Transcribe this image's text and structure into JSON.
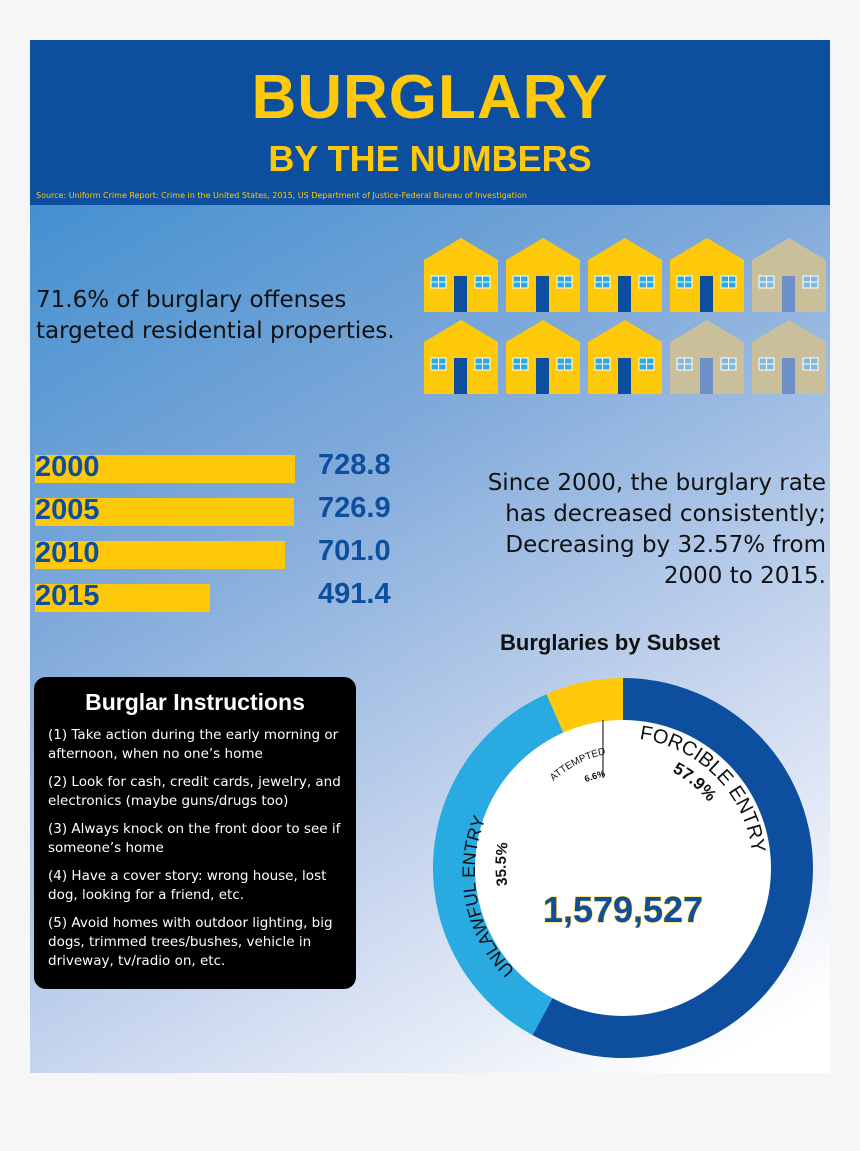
{
  "header": {
    "title": "BURGLARY",
    "subtitle": "BY THE NUMBERS",
    "source": "Source: Uniform Crime Report: Crime in the United States, 2015, US Department of Justice-Federal Bureau of Investigation"
  },
  "residential": {
    "text_line1": "71.6% of burglary offenses",
    "text_line2": "targeted residential properties.",
    "houses_total": 10,
    "houses_highlighted": 7,
    "highlight_color": "#fec80b",
    "dim_color": "#c9bf9a"
  },
  "rate_note": {
    "line1": "Since 2000, the burglary rate",
    "line2": "has decreased consistently;",
    "line3": "Decreasing by 32.57% from",
    "line4": "2000 to 2015."
  },
  "instructions": {
    "title": "Burglar Instructions",
    "items": [
      "(1) Take action during the early morning or afternoon, when no one’s home",
      "(2) Look for cash, credit cards, jewelry, and electronics (maybe guns/drugs too)",
      "(3) Always knock on the front door to see if someone’s home",
      "(4) Have a cover story: wrong house, lost dog, looking for a friend, etc.",
      "(5) Avoid homes with outdoor lighting, big dogs, trimmed trees/bushes, vehicle in driveway, tv/radio on, etc."
    ]
  },
  "chart_data": [
    {
      "type": "bar",
      "orientation": "horizontal",
      "categories": [
        "2000",
        "2005",
        "2010",
        "2015"
      ],
      "values": [
        728.8,
        726.9,
        701.0,
        491.4
      ],
      "labels": [
        "728.8",
        "726.9",
        "701.0",
        "491.4"
      ],
      "color": "#fec80b"
    },
    {
      "type": "pie",
      "donut": true,
      "title": "Burglaries by Subset",
      "center_label": "1,579,527",
      "slices": [
        {
          "name": "FORCIBLE ENTRY",
          "label": "57.9%",
          "value": 57.9,
          "color": "#0d4f9e"
        },
        {
          "name": "UNLAWFUL ENTRY",
          "label": "35.5%",
          "value": 35.5,
          "color": "#29abe2"
        },
        {
          "name": "ATTEMPTED",
          "label": "6.6%",
          "value": 6.6,
          "color": "#fec80b"
        }
      ]
    }
  ]
}
